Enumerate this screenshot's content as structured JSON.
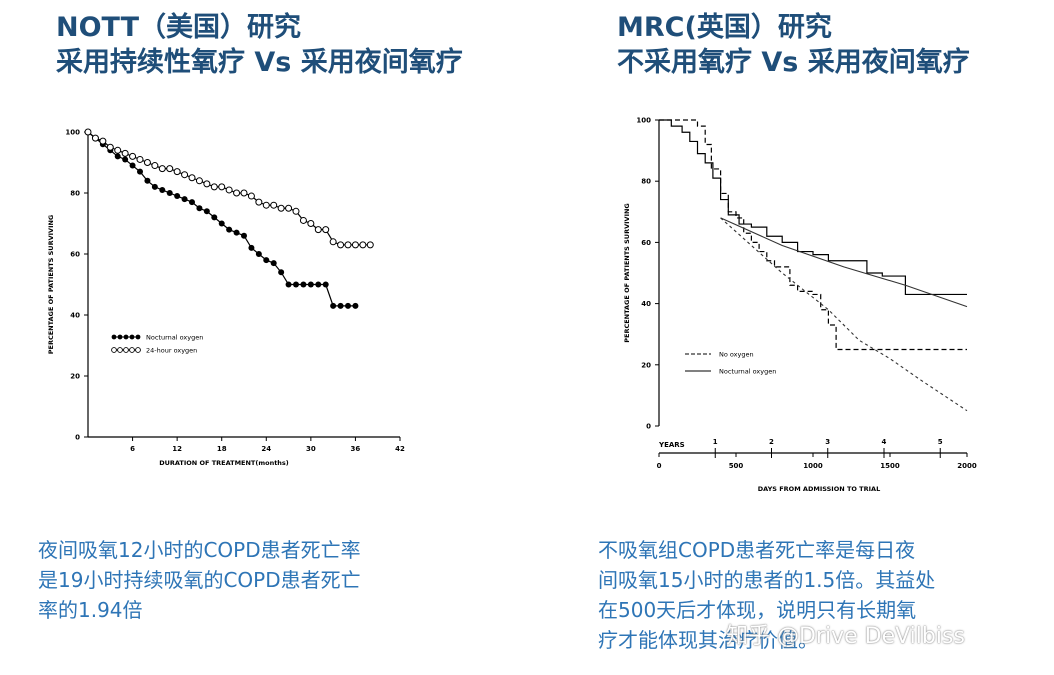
{
  "left": {
    "title_lines": [
      "NOTT（美国）研究",
      "采用持续性氧疗 Vs 采用夜间氧疗"
    ],
    "caption_lines": [
      "夜间吸氧12小时的COPD患者死亡率",
      "是19小时持续吸氧的COPD患者死亡",
      "率的1.94倍"
    ]
  },
  "right": {
    "title_lines": [
      "MRC(英国）研究",
      "不采用氧疗 Vs 采用夜间氧疗"
    ],
    "caption_lines": [
      "不吸氧组COPD患者死亡率是每日夜",
      "间吸氧15小时的患者的1.5倍。其益处",
      "在500天后才体现，说明只有长期氧",
      "疗才能体现其治疗价值。"
    ]
  },
  "watermark": "知乎 @Drive DeVilbiss",
  "chart_data": [
    {
      "type": "line",
      "xlabel": "DURATION OF TREATMENT(months)",
      "ylabel": "PERCENTAGE OF PATIENTS SURVIVING",
      "xlim": [
        0,
        42
      ],
      "ylim": [
        0,
        100
      ],
      "x_ticks": [
        6,
        12,
        18,
        24,
        30,
        36,
        42
      ],
      "y_ticks": [
        0,
        20,
        40,
        60,
        80,
        100
      ],
      "legend_position": "center-left",
      "series": [
        {
          "name": "Nocturnal oxygen",
          "marker": "filled-circle",
          "x": [
            0,
            1,
            2,
            3,
            4,
            5,
            6,
            7,
            8,
            9,
            10,
            11,
            12,
            13,
            14,
            15,
            16,
            17,
            18,
            19,
            20,
            21,
            22,
            23,
            24,
            25,
            26,
            27,
            28,
            29,
            30,
            31,
            32,
            33,
            34,
            35,
            36
          ],
          "y": [
            100,
            98,
            96,
            94,
            92,
            91,
            89,
            87,
            84,
            82,
            81,
            80,
            79,
            78,
            77,
            75,
            74,
            72,
            70,
            68,
            67,
            66,
            62,
            60,
            58,
            57,
            54,
            50,
            50,
            50,
            50,
            50,
            50,
            43,
            43,
            43,
            43
          ]
        },
        {
          "name": "24-hour oxygen",
          "marker": "open-circle",
          "x": [
            0,
            1,
            2,
            3,
            4,
            5,
            6,
            7,
            8,
            9,
            10,
            11,
            12,
            13,
            14,
            15,
            16,
            17,
            18,
            19,
            20,
            21,
            22,
            23,
            24,
            25,
            26,
            27,
            28,
            29,
            30,
            31,
            32,
            33,
            34,
            35,
            36,
            37,
            38
          ],
          "y": [
            100,
            98,
            97,
            95,
            94,
            93,
            92,
            91,
            90,
            89,
            88,
            88,
            87,
            86,
            85,
            84,
            83,
            82,
            82,
            81,
            80,
            80,
            79,
            77,
            76,
            76,
            75,
            75,
            74,
            71,
            70,
            68,
            68,
            64,
            63,
            63,
            63,
            63,
            63
          ]
        }
      ]
    },
    {
      "type": "line",
      "xlabel": "DAYS FROM ADMISSION TO TRIAL",
      "ylabel": "PERCENTAGE OF PATIENTS SURVIVING",
      "xlim": [
        0,
        2000
      ],
      "ylim": [
        0,
        100
      ],
      "x_ticks": [
        0,
        500,
        1000,
        1500,
        2000
      ],
      "y_ticks": [
        0,
        20,
        40,
        60,
        80,
        100
      ],
      "years_label": "YEARS",
      "year_ticks": [
        1,
        2,
        3,
        4,
        5
      ],
      "legend_position": "bottom-left",
      "series": [
        {
          "name": "No oxygen",
          "style": "dashed-step",
          "x": [
            0,
            200,
            250,
            300,
            340,
            400,
            450,
            500,
            550,
            600,
            650,
            700,
            750,
            850,
            900,
            1000,
            1050,
            1100,
            1150,
            2000
          ],
          "y": [
            100,
            100,
            98,
            92,
            84,
            76,
            70,
            68,
            63,
            60,
            57,
            54,
            52,
            46,
            44,
            43,
            38,
            33,
            25,
            25
          ]
        },
        {
          "name": "Nocturnal oxygen",
          "style": "solid-step",
          "x": [
            0,
            80,
            150,
            200,
            250,
            300,
            350,
            400,
            450,
            520,
            600,
            700,
            800,
            900,
            1000,
            1100,
            1200,
            1350,
            1450,
            1600,
            2000
          ],
          "y": [
            100,
            98,
            96,
            93,
            89,
            86,
            81,
            74,
            69,
            66,
            65,
            62,
            60,
            57,
            56,
            54,
            54,
            50,
            49,
            43,
            43
          ]
        },
        {
          "name": "",
          "style": "dashed-fit",
          "x": [
            400,
            800,
            1100,
            1300,
            1500,
            1700,
            2000
          ],
          "y": [
            68,
            50,
            38,
            28,
            22,
            15,
            5
          ]
        },
        {
          "name": "",
          "style": "solid-fit",
          "x": [
            400,
            800,
            1200,
            1600,
            2000
          ],
          "y": [
            68,
            59,
            52,
            46,
            39
          ]
        }
      ]
    }
  ]
}
